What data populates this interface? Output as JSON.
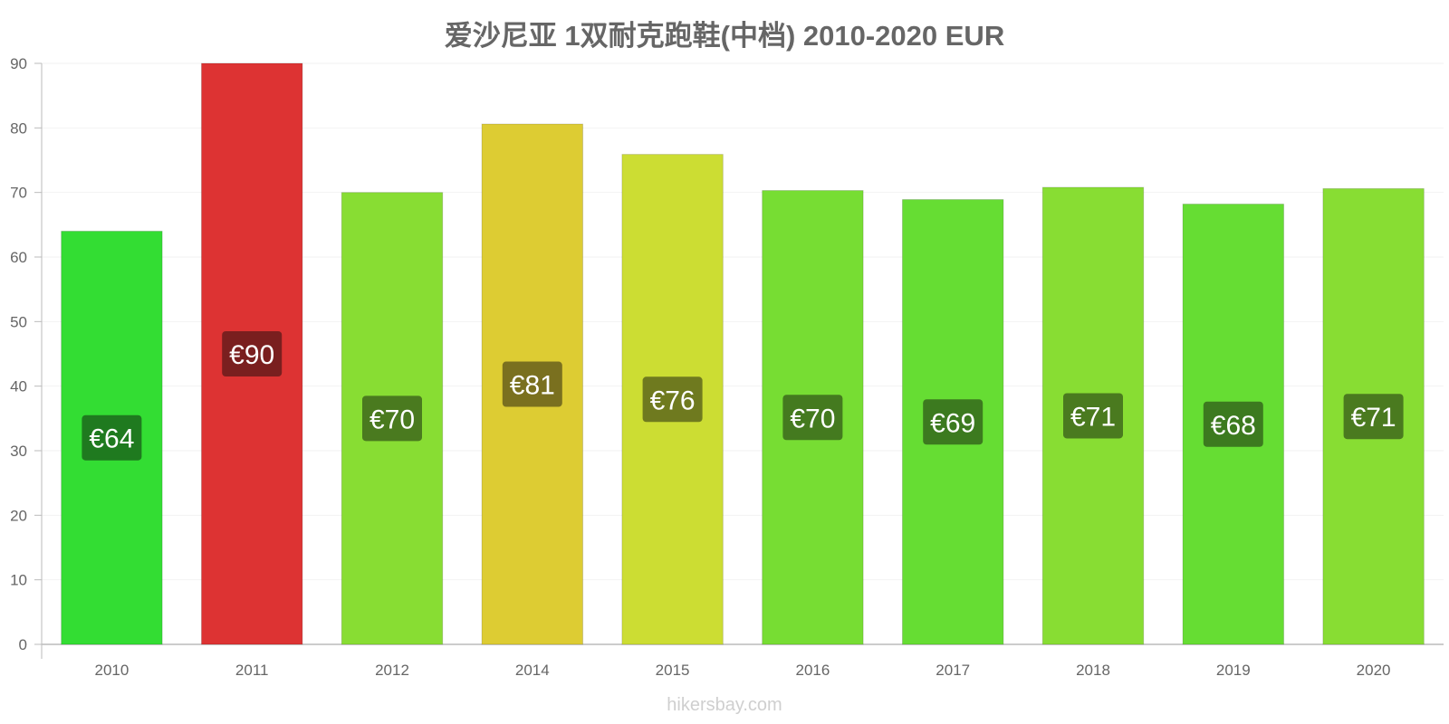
{
  "chart_data": {
    "type": "bar",
    "title": "爱沙尼亚 1双耐克跑鞋(中档) 2010-2020 EUR",
    "xlabel": "",
    "ylabel": "",
    "categories": [
      "2010",
      "2011",
      "2012",
      "2014",
      "2015",
      "2016",
      "2017",
      "2018",
      "2019",
      "2020"
    ],
    "values": [
      64,
      90,
      70,
      80.6,
      75.9,
      70.3,
      68.9,
      70.8,
      68.2,
      70.6
    ],
    "data_labels": [
      "€64",
      "€90",
      "€70",
      "€81",
      "€76",
      "€70",
      "€69",
      "€71",
      "€68",
      "€71"
    ],
    "bar_colors": [
      "#33dd33",
      "#dd3333",
      "#88dd33",
      "#ddcc33",
      "#ccdd33",
      "#77dd33",
      "#66dd33",
      "#88dd33",
      "#66dd33",
      "#88dd33"
    ],
    "label_bg_colors": [
      "#1f7a1f",
      "#7a1f1f",
      "#4a7a1f",
      "#7a701f",
      "#6f7a1f",
      "#447a1f",
      "#3c7a1f",
      "#4a7a1f",
      "#3c7a1f",
      "#4a7a1f"
    ],
    "ylim": [
      0,
      90
    ],
    "yticks": [
      0,
      10,
      20,
      30,
      40,
      50,
      60,
      70,
      80,
      90
    ],
    "grid": true,
    "legend": "none"
  },
  "watermark": "hikersbay.com"
}
